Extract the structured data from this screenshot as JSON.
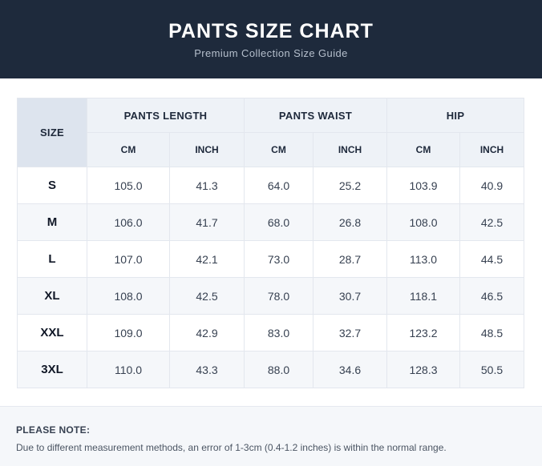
{
  "header": {
    "title": "PANTS SIZE CHART",
    "subtitle": "Premium Collection Size Guide"
  },
  "table": {
    "size_header": "SIZE",
    "groups": [
      "PANTS LENGTH",
      "PANTS WAIST",
      "HIP"
    ],
    "units": [
      "CM",
      "INCH",
      "CM",
      "INCH",
      "CM",
      "INCH"
    ],
    "rows": [
      {
        "size": "S",
        "values": [
          "105.0",
          "41.3",
          "64.0",
          "25.2",
          "103.9",
          "40.9"
        ]
      },
      {
        "size": "M",
        "values": [
          "106.0",
          "41.7",
          "68.0",
          "26.8",
          "108.0",
          "42.5"
        ]
      },
      {
        "size": "L",
        "values": [
          "107.0",
          "42.1",
          "73.0",
          "28.7",
          "113.0",
          "44.5"
        ]
      },
      {
        "size": "XL",
        "values": [
          "108.0",
          "42.5",
          "78.0",
          "30.7",
          "118.1",
          "46.5"
        ]
      },
      {
        "size": "XXL",
        "values": [
          "109.0",
          "42.9",
          "83.0",
          "32.7",
          "123.2",
          "48.5"
        ]
      },
      {
        "size": "3XL",
        "values": [
          "110.0",
          "43.3",
          "88.0",
          "34.6",
          "128.3",
          "50.5"
        ]
      }
    ]
  },
  "note": {
    "title": "PLEASE NOTE:",
    "text": "Due to different measurement methods, an error of 1-3cm (0.4-1.2 inches) is within the normal range."
  },
  "colors": {
    "header_bg": "#1e2a3c",
    "table_header_bg": "#eef2f7",
    "size_header_bg": "#dde4ee",
    "alt_row_bg": "#f5f7fa"
  }
}
